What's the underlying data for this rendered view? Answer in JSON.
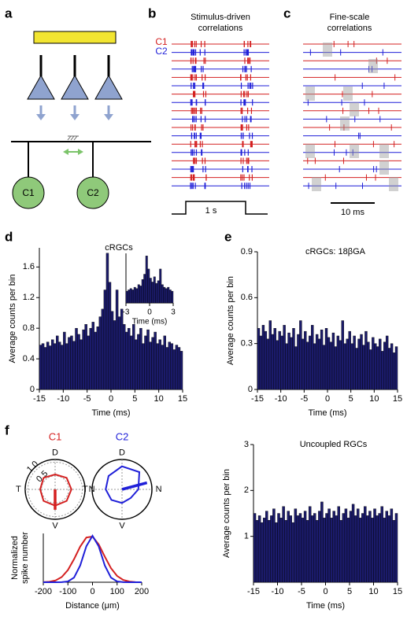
{
  "panel_labels": [
    "a",
    "b",
    "c",
    "d",
    "e",
    "f"
  ],
  "diagram": {
    "cells": [
      "C1",
      "C2"
    ]
  },
  "raster_b": {
    "title": [
      "Stimulus-driven",
      "correlations"
    ],
    "legend": [
      "C1",
      "C2"
    ],
    "scale": "1 s"
  },
  "raster_c": {
    "title": [
      "Fine-scale",
      "correlations"
    ],
    "scale": "10 ms"
  },
  "chart_data": [
    {
      "type": "histogram",
      "title": "cRGCs",
      "xlabel": "Time (ms)",
      "ylabel": "Average counts per bin",
      "color": "#1b1b6b",
      "bins": [
        -15,
        -14.5,
        -14,
        -13.5,
        -13,
        -12.5,
        -12,
        -11.5,
        -11,
        -10.5,
        -10,
        -9.5,
        -9,
        -8.5,
        -8,
        -7.5,
        -7,
        -6.5,
        -6,
        -5.5,
        -5,
        -4.5,
        -4,
        -3.5,
        -3,
        -2.5,
        -2,
        -1.5,
        -1,
        -0.5,
        0,
        0.5,
        1,
        1.5,
        2,
        2.5,
        3,
        3.5,
        4,
        4.5,
        5,
        5.5,
        6,
        6.5,
        7,
        7.5,
        8,
        8.5,
        9,
        9.5,
        10,
        10.5,
        11,
        11.5,
        12,
        12.5,
        13,
        13.5,
        14,
        14.5,
        15
      ],
      "values": [
        0.58,
        0.6,
        0.55,
        0.62,
        0.57,
        0.65,
        0.6,
        0.7,
        0.62,
        0.58,
        0.75,
        0.6,
        0.68,
        0.7,
        0.63,
        0.8,
        0.72,
        0.65,
        0.78,
        0.85,
        0.7,
        0.8,
        0.88,
        0.75,
        0.82,
        0.95,
        1.05,
        1.3,
        1.78,
        1.4,
        1.02,
        0.9,
        1.3,
        0.95,
        1.05,
        0.85,
        0.75,
        0.8,
        0.7,
        0.85,
        0.65,
        0.72,
        0.8,
        0.6,
        0.7,
        0.78,
        0.62,
        0.68,
        0.75,
        0.6,
        0.65,
        0.58,
        0.7,
        0.55,
        0.62,
        0.6,
        0.52,
        0.58,
        0.55,
        0.5
      ],
      "xlim": [
        -15,
        15
      ],
      "xticks": [
        -15,
        -10,
        -5,
        0,
        5,
        10,
        15
      ],
      "ylim": [
        0,
        1.85
      ],
      "yticks": [
        0,
        0.4,
        0.8,
        1.2,
        1.6
      ]
    },
    {
      "type": "histogram",
      "xlabel": "Time (ms)",
      "color": "#1b1b6b",
      "bins": [
        -3,
        -2.75,
        -2.5,
        -2.25,
        -2,
        -1.75,
        -1.5,
        -1.25,
        -1,
        -0.75,
        -0.5,
        -0.25,
        0,
        0.25,
        0.5,
        0.75,
        1,
        1.25,
        1.5,
        1.75,
        2,
        2.25,
        2.5,
        2.75,
        3
      ],
      "values": [
        0.45,
        0.5,
        0.55,
        0.5,
        0.6,
        0.55,
        0.7,
        0.65,
        0.9,
        1.1,
        1.8,
        1.3,
        0.95,
        0.8,
        1.0,
        0.75,
        0.85,
        1.3,
        0.7,
        0.6,
        0.55,
        0.6,
        0.5,
        0.45
      ],
      "xlim": [
        -3,
        3
      ],
      "xticks": [
        -3,
        0,
        3
      ],
      "ylim": [
        0,
        1.9
      ]
    },
    {
      "type": "histogram",
      "title": "cRGCs: 18βGA",
      "xlabel": "Time (ms)",
      "ylabel": "Average counts per bin",
      "color": "#1b1b6b",
      "bins": [
        -15,
        -14.5,
        -14,
        -13.5,
        -13,
        -12.5,
        -12,
        -11.5,
        -11,
        -10.5,
        -10,
        -9.5,
        -9,
        -8.5,
        -8,
        -7.5,
        -7,
        -6.5,
        -6,
        -5.5,
        -5,
        -4.5,
        -4,
        -3.5,
        -3,
        -2.5,
        -2,
        -1.5,
        -1,
        -0.5,
        0,
        0.5,
        1,
        1.5,
        2,
        2.5,
        3,
        3.5,
        4,
        4.5,
        5,
        5.5,
        6,
        6.5,
        7,
        7.5,
        8,
        8.5,
        9,
        9.5,
        10,
        10.5,
        11,
        11.5,
        12,
        12.5,
        13,
        13.5,
        14,
        14.5,
        15
      ],
      "values": [
        0.4,
        0.35,
        0.42,
        0.38,
        0.33,
        0.45,
        0.36,
        0.4,
        0.32,
        0.38,
        0.35,
        0.42,
        0.3,
        0.37,
        0.34,
        0.4,
        0.28,
        0.36,
        0.45,
        0.33,
        0.38,
        0.31,
        0.35,
        0.42,
        0.3,
        0.36,
        0.33,
        0.39,
        0.29,
        0.4,
        0.34,
        0.31,
        0.37,
        0.28,
        0.35,
        0.32,
        0.45,
        0.3,
        0.33,
        0.38,
        0.3,
        0.35,
        0.27,
        0.33,
        0.36,
        0.29,
        0.38,
        0.31,
        0.26,
        0.34,
        0.3,
        0.28,
        0.33,
        0.25,
        0.31,
        0.35,
        0.27,
        0.3,
        0.24,
        0.28
      ],
      "xlim": [
        -15,
        15
      ],
      "xticks": [
        -15,
        -10,
        -5,
        0,
        5,
        10,
        15
      ],
      "ylim": [
        0,
        0.9
      ],
      "yticks": [
        0,
        0.3,
        0.6,
        0.9
      ]
    },
    {
      "type": "histogram",
      "title": "Uncoupled RGCs",
      "xlabel": "Time (ms)",
      "ylabel": "Average counts per bin",
      "color": "#1b1b6b",
      "bins": [
        -15,
        -14.5,
        -14,
        -13.5,
        -13,
        -12.5,
        -12,
        -11.5,
        -11,
        -10.5,
        -10,
        -9.5,
        -9,
        -8.5,
        -8,
        -7.5,
        -7,
        -6.5,
        -6,
        -5.5,
        -5,
        -4.5,
        -4,
        -3.5,
        -3,
        -2.5,
        -2,
        -1.5,
        -1,
        -0.5,
        0,
        0.5,
        1,
        1.5,
        2,
        2.5,
        3,
        3.5,
        4,
        4.5,
        5,
        5.5,
        6,
        6.5,
        7,
        7.5,
        8,
        8.5,
        9,
        9.5,
        10,
        10.5,
        11,
        11.5,
        12,
        12.5,
        13,
        13.5,
        14,
        14.5,
        15
      ],
      "values": [
        1.5,
        1.35,
        1.45,
        1.3,
        1.4,
        1.55,
        1.35,
        1.45,
        1.6,
        1.3,
        1.5,
        1.4,
        1.65,
        1.35,
        1.55,
        1.45,
        1.3,
        1.6,
        1.45,
        1.5,
        1.4,
        1.55,
        1.35,
        1.65,
        1.45,
        1.5,
        1.35,
        1.55,
        1.75,
        1.4,
        1.5,
        1.6,
        1.4,
        1.55,
        1.45,
        1.65,
        1.35,
        1.5,
        1.6,
        1.4,
        1.55,
        1.7,
        1.45,
        1.6,
        1.4,
        1.5,
        1.65,
        1.45,
        1.55,
        1.4,
        1.6,
        1.45,
        1.5,
        1.65,
        1.4,
        1.55,
        1.45,
        1.6,
        1.35,
        1.5
      ],
      "xlim": [
        -15,
        15
      ],
      "xticks": [
        -15,
        -10,
        -5,
        0,
        5,
        10,
        15
      ],
      "ylim": [
        0,
        3
      ],
      "yticks": [
        1,
        2,
        3
      ]
    },
    {
      "type": "radar",
      "title": "C1",
      "color": "#d42020",
      "categories": [
        "D",
        null,
        "N",
        null,
        "V",
        null,
        "T",
        null
      ],
      "values": [
        0.55,
        0.6,
        0.6,
        0.6,
        0.6,
        0.6,
        0.55,
        0.6
      ],
      "vector": {
        "angle": 180,
        "length": 0.75
      },
      "rlim": [
        0,
        1.1
      ],
      "rticks": [
        0.5,
        {
          "value": 1,
          "label": "1.0"
        }
      ]
    },
    {
      "type": "radar",
      "title": "C2",
      "color": "#1f1fd8",
      "categories": [
        "D",
        null,
        "N",
        null,
        "V",
        null,
        "T",
        null
      ],
      "values": [
        0.85,
        0.9,
        0.6,
        0.45,
        0.5,
        0.55,
        0.6,
        0.7
      ],
      "vector": {
        "angle": 75,
        "length": 0.95
      },
      "rlim": [
        0,
        1.1
      ]
    },
    {
      "type": "line",
      "xlabel": "Distance (μm)",
      "ylabel": [
        "Normalized",
        "spike number"
      ],
      "x": [
        -200,
        -175,
        -150,
        -125,
        -100,
        -75,
        -50,
        -25,
        0,
        25,
        50,
        75,
        100,
        125,
        150,
        175,
        200
      ],
      "series": [
        {
          "color": "#d42020",
          "values": [
            0.003,
            0.011,
            0.039,
            0.112,
            0.262,
            0.497,
            0.768,
            0.963,
            0.983,
            0.817,
            0.551,
            0.303,
            0.135,
            0.049,
            0.015,
            0.003,
            0.001
          ]
        },
        {
          "color": "#1f1fd8",
          "values": [
            0,
            0,
            0,
            0.002,
            0.017,
            0.101,
            0.361,
            0.775,
            1,
            0.775,
            0.361,
            0.101,
            0.017,
            0.002,
            0,
            0,
            0
          ]
        }
      ],
      "xlim": [
        -200,
        200
      ],
      "xticks": [
        -200,
        -100,
        0,
        100,
        200
      ],
      "ylim": [
        0,
        1.05
      ]
    }
  ]
}
